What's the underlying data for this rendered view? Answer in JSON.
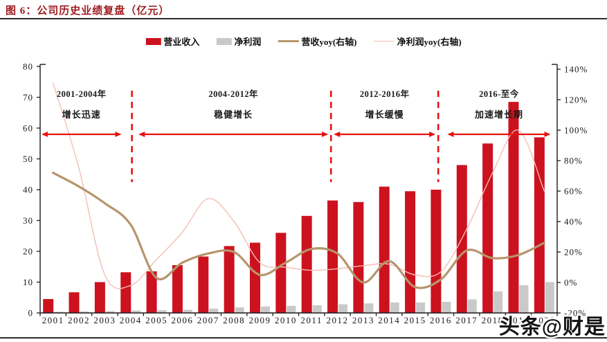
{
  "header": {
    "title": "图 6：公司历史业绩复盘（亿元）"
  },
  "legend": [
    {
      "label": "营业收入",
      "type": "bar",
      "color": "#CC121E"
    },
    {
      "label": "净利润",
      "type": "bar",
      "color": "#C9C9C9"
    },
    {
      "label": "营收yoy(右轴)",
      "type": "line",
      "color": "#B6946C",
      "thickness": 3
    },
    {
      "label": "净利润yoy(右轴)",
      "type": "line",
      "color": "#F5BDB5",
      "thickness": 1.5
    }
  ],
  "watermark": "头条@财是",
  "chart_data": {
    "type": "bar+line-combo",
    "title": "图 6：公司历史业绩复盘（亿元）",
    "categories": [
      "2001",
      "2002",
      "2003",
      "2004",
      "2005",
      "2006",
      "2007",
      "2008",
      "2009",
      "2010",
      "2011",
      "2012",
      "2013",
      "2014",
      "2015",
      "2016",
      "2017",
      "2018",
      "2019",
      "2020"
    ],
    "series": [
      {
        "name": "营业收入",
        "type": "bar",
        "axis": "left",
        "color": "#CC121E",
        "values": [
          4.5,
          6.7,
          10.0,
          13.2,
          13.5,
          15.5,
          18.3,
          21.7,
          22.8,
          26.0,
          31.5,
          36.5,
          36.0,
          41.0,
          39.5,
          40.0,
          48.0,
          55.0,
          68.5,
          57.0
        ]
      },
      {
        "name": "净利润",
        "type": "bar",
        "axis": "left",
        "color": "#C9C9C9",
        "values": [
          0.4,
          0.5,
          0.6,
          0.8,
          0.9,
          1.0,
          1.4,
          1.8,
          2.1,
          2.3,
          2.5,
          2.8,
          3.1,
          3.4,
          3.4,
          3.6,
          4.4,
          7.0,
          9.0,
          10.0
        ]
      },
      {
        "name": "营收yoy(右轴)",
        "type": "line",
        "axis": "right",
        "color": "#B6946C",
        "thickness": 3.2,
        "values": [
          72,
          63,
          52,
          38,
          3,
          13,
          19,
          20,
          5,
          13,
          22,
          19,
          0,
          14,
          -3,
          2,
          21,
          16,
          18,
          26
        ]
      },
      {
        "name": "净利润yoy(右轴)",
        "type": "line",
        "axis": "right",
        "color": "#F5BDB5",
        "thickness": 1.4,
        "values": [
          131,
          75,
          5,
          -2,
          15,
          33,
          55,
          40,
          13,
          10,
          8,
          9,
          11,
          12,
          5,
          7,
          35,
          72,
          100,
          60
        ]
      }
    ],
    "left_axis": {
      "min": 0,
      "max": 80,
      "step": 10,
      "labels": [
        "0",
        "10",
        "20",
        "30",
        "40",
        "50",
        "60",
        "70",
        "80"
      ]
    },
    "right_axis": {
      "min": -20,
      "max": 140,
      "step": 20,
      "labels": [
        "-20%",
        "0%",
        "20%",
        "40%",
        "60%",
        "80%",
        "100%",
        "120%",
        "140%"
      ]
    },
    "grid": "off",
    "legend_position": "top-center",
    "phases": [
      {
        "period": "2001-2004年",
        "label": "增长迅速",
        "arrow_from": 0.1,
        "arrow_to": 3.1
      },
      {
        "period": "2004-2012年",
        "label": "稳健增长",
        "arrow_from": 3.85,
        "arrow_to": 11.1
      },
      {
        "period": "2012-2016年",
        "label": "增长缓慢",
        "arrow_from": 11.4,
        "arrow_to": 15.25
      },
      {
        "period": "2016-至今",
        "label": "加速增长期",
        "arrow_from": 15.8,
        "arrow_to": 19.7
      }
    ],
    "dividers_u": [
      3.55,
      11.25,
      15.4
    ],
    "annotation_color": "#E81010"
  }
}
